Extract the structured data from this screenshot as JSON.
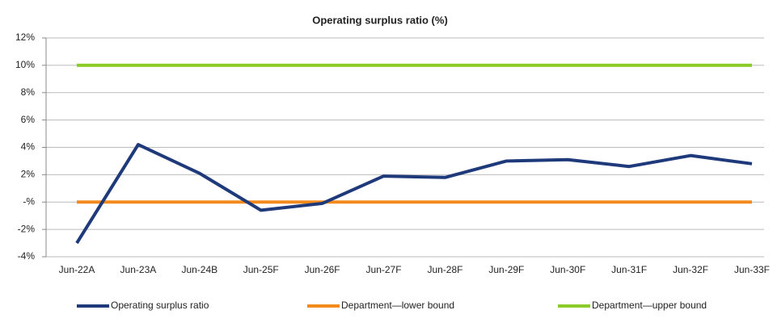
{
  "chart_data": {
    "type": "line",
    "title": "Operating surplus ratio (%)",
    "categories": [
      "Jun-22A",
      "Jun-23A",
      "Jun-24B",
      "Jun-25F",
      "Jun-26F",
      "Jun-27F",
      "Jun-28F",
      "Jun-29F",
      "Jun-30F",
      "Jun-31F",
      "Jun-32F",
      "Jun-33F"
    ],
    "series": [
      {
        "name": "Operating surplus ratio",
        "color": "#1f3a7a",
        "values": [
          -3.0,
          4.2,
          2.1,
          -0.6,
          -0.1,
          1.9,
          1.8,
          3.0,
          3.1,
          2.6,
          3.4,
          2.8
        ]
      },
      {
        "name": "Department—lower bound",
        "color": "#f28a1e",
        "values": [
          0,
          0,
          0,
          0,
          0,
          0,
          0,
          0,
          0,
          0,
          0,
          0
        ]
      },
      {
        "name": "Department—upper bound",
        "color": "#8ccc2a",
        "values": [
          10,
          10,
          10,
          10,
          10,
          10,
          10,
          10,
          10,
          10,
          10,
          10
        ]
      }
    ],
    "ylim": [
      -4,
      12
    ],
    "yticks": [
      {
        "value": -4,
        "label": "-4%"
      },
      {
        "value": -2,
        "label": "-2%"
      },
      {
        "value": 0,
        "label": "-%"
      },
      {
        "value": 2,
        "label": "2%"
      },
      {
        "value": 4,
        "label": "4%"
      },
      {
        "value": 6,
        "label": "6%"
      },
      {
        "value": 8,
        "label": "8%"
      },
      {
        "value": 10,
        "label": "10%"
      },
      {
        "value": 12,
        "label": "12%"
      }
    ],
    "grid": true,
    "legend": "bottom"
  }
}
